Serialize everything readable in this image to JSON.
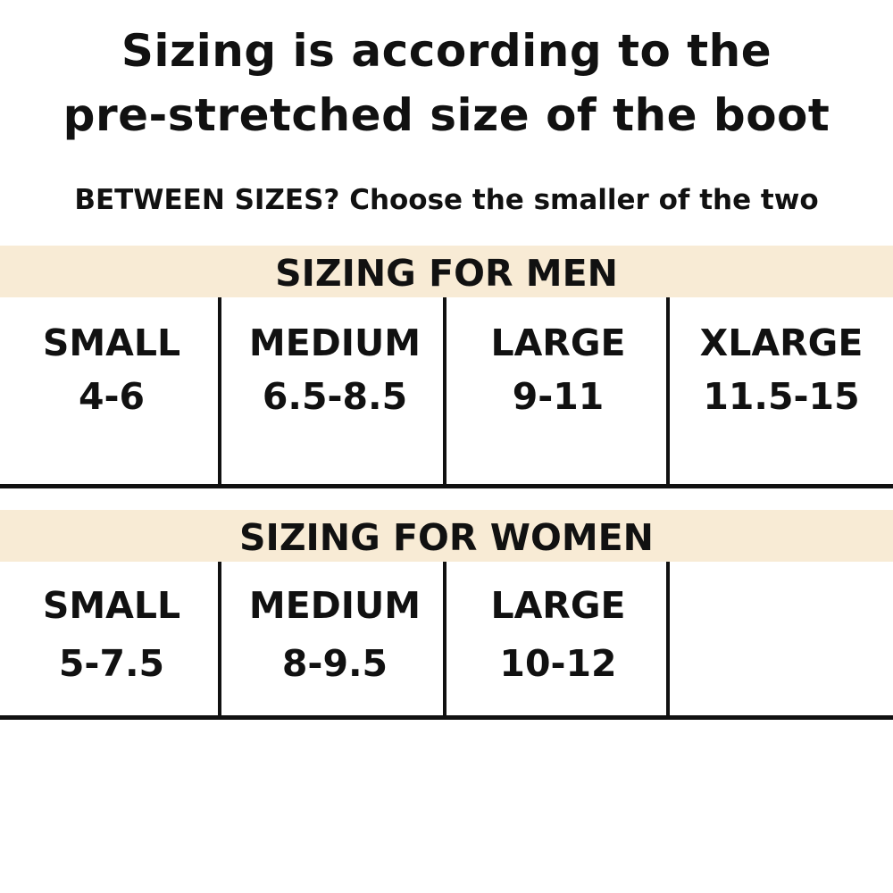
{
  "heading": {
    "line1": "Sizing is according to the",
    "line2": "pre-stretched size of the boot"
  },
  "note": "BETWEEN SIZES? Choose the smaller of the two",
  "band_color": "#f8ebd5",
  "men": {
    "title": "SIZING FOR MEN",
    "sizes": [
      {
        "name": "SMALL",
        "range": "4-6"
      },
      {
        "name": "MEDIUM",
        "range": "6.5-8.5"
      },
      {
        "name": "LARGE",
        "range": "9-11"
      },
      {
        "name": "XLARGE",
        "range": "11.5-15"
      }
    ]
  },
  "women": {
    "title": "SIZING FOR WOMEN",
    "sizes": [
      {
        "name": "SMALL",
        "range": "5-7.5"
      },
      {
        "name": "MEDIUM",
        "range": "8-9.5"
      },
      {
        "name": "LARGE",
        "range": "10-12"
      }
    ]
  }
}
